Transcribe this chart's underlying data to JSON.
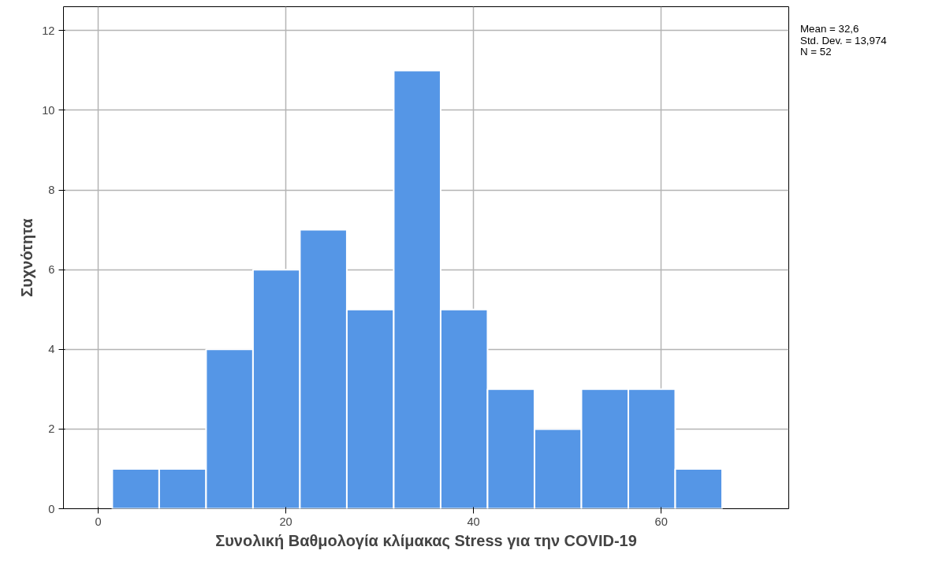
{
  "chart_data": {
    "type": "histogram",
    "xlabel": "Συνολική Βαθμολογία κλίμακας Stress για την COVID-19",
    "ylabel": "Συχνότητα",
    "bins": [
      1.5,
      6.5,
      11.5,
      16.5,
      21.5,
      26.5,
      31.5,
      36.5,
      41.5,
      46.5,
      51.5,
      56.5,
      61.5,
      66.5
    ],
    "values": [
      1,
      1,
      4,
      6,
      7,
      5,
      11,
      5,
      3,
      2,
      3,
      3,
      1
    ],
    "color": "#5596e6",
    "xlim": [
      -3.7,
      73.6
    ],
    "xticks": [
      0,
      20,
      40,
      60
    ],
    "ylim": [
      0,
      12.6
    ],
    "yticks": [
      0,
      2,
      4,
      6,
      8,
      10,
      12
    ],
    "grid": true,
    "annotations": [
      "Mean = 32,6",
      "Std. Dev. = 13,974",
      "N = 52"
    ]
  }
}
